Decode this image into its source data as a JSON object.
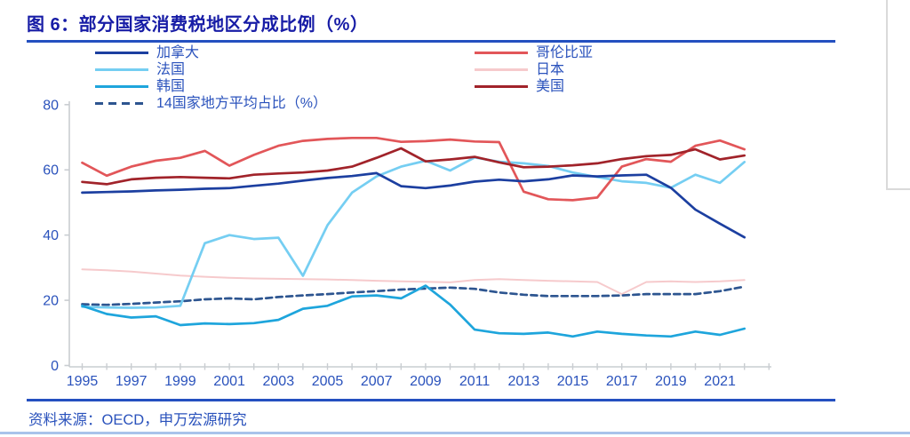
{
  "header": {
    "title": "图 6：部分国家消费税地区分成比例（%）"
  },
  "footer": {
    "source": "资料来源：OECD，申万宏源研究"
  },
  "colors": {
    "title_text": "#171ca6",
    "accent_rule": "#2450c0",
    "blue_text": "#2a52bc",
    "axis_gray": "#c9cdd1",
    "page_bottom_rule": "#a9c3ea",
    "panel_border": "#dadada"
  },
  "legend": {
    "columns": [
      [
        "加拿大",
        "法国",
        "韩国",
        "14国家地方平均占比（%）"
      ],
      [
        "哥伦比亚",
        "日本",
        "美国"
      ]
    ]
  },
  "chart_data": {
    "type": "line",
    "title": "部分国家消费税地区分成比例（%）",
    "grid": false,
    "legend_position": "top",
    "ylim": [
      0,
      80
    ],
    "yticks": [
      0,
      20,
      40,
      60,
      80
    ],
    "xtick_labels": [
      "1995",
      "1997",
      "1999",
      "2001",
      "2003",
      "2005",
      "2007",
      "2009",
      "2011",
      "2013",
      "2015",
      "2017",
      "2019",
      "2021"
    ],
    "x": [
      1995,
      1996,
      1997,
      1998,
      1999,
      2000,
      2001,
      2002,
      2003,
      2004,
      2005,
      2006,
      2007,
      2008,
      2009,
      2010,
      2011,
      2012,
      2013,
      2014,
      2015,
      2016,
      2017,
      2018,
      2019,
      2020,
      2021,
      2022
    ],
    "series": [
      {
        "key": "canada",
        "name": "加拿大",
        "color": "#1c3fa0",
        "dashed": false,
        "width": 2.7,
        "values": [
          53,
          53.2,
          53.4,
          53.7,
          53.9,
          54.2,
          54.4,
          55.1,
          55.8,
          56.7,
          57.5,
          58.1,
          59,
          55,
          54.4,
          55.2,
          56.4,
          57,
          56.5,
          57.1,
          58.3,
          58,
          58.3,
          58.5,
          54.5,
          47.8,
          43.5,
          39.3
        ]
      },
      {
        "key": "france",
        "name": "法国",
        "color": "#75cef2",
        "dashed": false,
        "width": 2.7,
        "values": [
          18,
          17.8,
          17.7,
          17.8,
          18.3,
          37.5,
          40,
          38.8,
          39.2,
          27.5,
          43,
          53,
          58,
          61,
          62.8,
          59.8,
          63.8,
          62.5,
          62,
          61.2,
          59.2,
          57.8,
          56.5,
          56,
          54.5,
          58.5,
          56,
          62.4
        ]
      },
      {
        "key": "korea",
        "name": "韩国",
        "color": "#1ea5dc",
        "dashed": false,
        "width": 2.7,
        "values": [
          18.3,
          15.8,
          14.7,
          15.1,
          12.4,
          12.9,
          12.7,
          13,
          14,
          17.4,
          18.3,
          21.2,
          21.5,
          20.6,
          24.5,
          18.7,
          11,
          9.9,
          9.7,
          10.1,
          8.9,
          10.4,
          9.7,
          9.2,
          8.9,
          10.4,
          9.4,
          11.3
        ]
      },
      {
        "key": "avg14",
        "name": "14国家地方平均占比（%）",
        "color": "#2d5590",
        "dashed": true,
        "width": 2.7,
        "values": [
          18.8,
          18.6,
          18.9,
          19.3,
          19.7,
          20.3,
          20.6,
          20.3,
          21,
          21.5,
          21.9,
          22.4,
          22.8,
          23.3,
          23.6,
          23.9,
          23.5,
          22.4,
          21.7,
          21.3,
          21.3,
          21.3,
          21.5,
          21.9,
          21.9,
          21.9,
          22.8,
          24.2
        ]
      },
      {
        "key": "colombia",
        "name": "哥伦比亚",
        "color": "#e25659",
        "dashed": false,
        "width": 2.7,
        "values": [
          62.2,
          58.2,
          61,
          62.8,
          63.7,
          65.8,
          61.3,
          64.6,
          67.4,
          68.9,
          69.5,
          69.8,
          69.8,
          68.6,
          68.8,
          69.3,
          68.7,
          68.5,
          53.3,
          51,
          50.7,
          51.5,
          61,
          63.3,
          62.5,
          67.4,
          69,
          66.3
        ]
      },
      {
        "key": "japan",
        "name": "日本",
        "color": "#f6cacc",
        "dashed": false,
        "width": 2.0,
        "values": [
          29.5,
          29.2,
          28.8,
          28.2,
          27.6,
          27.2,
          26.9,
          26.7,
          26.6,
          26.5,
          26.4,
          26.2,
          26,
          25.8,
          25.7,
          25.5,
          26.2,
          26.5,
          26.2,
          26,
          25.8,
          25.6,
          21.9,
          25.6,
          25.8,
          25.6,
          25.8,
          26.2
        ]
      },
      {
        "key": "usa",
        "name": "美国",
        "color": "#a1232a",
        "dashed": false,
        "width": 2.7,
        "values": [
          56.3,
          55.6,
          57.1,
          57.6,
          57.8,
          57.6,
          57.4,
          58.5,
          58.9,
          59.2,
          59.8,
          61,
          63.7,
          66.6,
          62.6,
          63.2,
          64,
          62.3,
          60.8,
          61,
          61.4,
          62,
          63.3,
          64.2,
          64.6,
          66.3,
          63.2,
          64.4
        ]
      }
    ]
  }
}
